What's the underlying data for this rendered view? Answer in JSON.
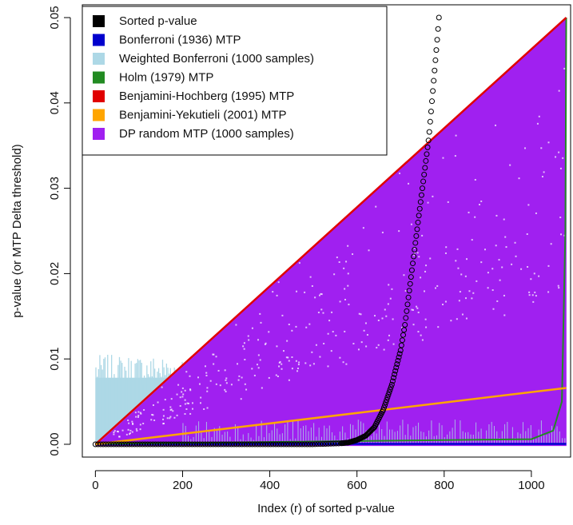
{
  "chart_data": {
    "type": "scatter",
    "xlabel": "Index (r) of sorted p-value",
    "ylabel": "p-value   (or MTP Delta threshold)",
    "xlim": [
      -30,
      1090
    ],
    "ylim": [
      -0.0015,
      0.0515
    ],
    "x_ticks": [
      0,
      200,
      400,
      600,
      800,
      1000
    ],
    "x_tick_labels": [
      "0",
      "200",
      "400",
      "600",
      "800",
      "1000"
    ],
    "y_ticks": [
      0.0,
      0.01,
      0.02,
      0.03,
      0.04,
      0.05
    ],
    "y_tick_labels": [
      "0.00",
      "0.01",
      "0.02",
      "0.03",
      "0.04",
      "0.05"
    ],
    "n_tests": 1080,
    "alpha": 0.05,
    "grid": false,
    "legend_position": "top-left",
    "legend": [
      {
        "label": "Sorted p-value",
        "color": "#000000"
      },
      {
        "label": "Bonferroni (1936) MTP",
        "color": "#0000cd"
      },
      {
        "label": "Weighted Bonferroni (1000 samples)",
        "color": "#add8e6"
      },
      {
        "label": "Holm (1979) MTP",
        "color": "#228b22"
      },
      {
        "label": "Benjamini-Hochberg (1995) MTP",
        "color": "#e00000"
      },
      {
        "label": "Benjamini-Yekutieli (2001) MTP",
        "color": "#ffa500"
      },
      {
        "label": "DP random MTP (1000 samples)",
        "color": "#a020f0"
      }
    ],
    "series": [
      {
        "name": "Sorted p-value",
        "kind": "points",
        "color": "#000000",
        "points": [
          [
            0,
            0.0
          ],
          [
            100,
            0.0
          ],
          [
            200,
            0.0
          ],
          [
            300,
            0.0
          ],
          [
            400,
            0.0
          ],
          [
            500,
            0.0
          ],
          [
            560,
            0.0001
          ],
          [
            580,
            0.0002
          ],
          [
            600,
            0.0005
          ],
          [
            620,
            0.001
          ],
          [
            640,
            0.002
          ],
          [
            660,
            0.004
          ],
          [
            680,
            0.007
          ],
          [
            700,
            0.011
          ],
          [
            710,
            0.014
          ],
          [
            720,
            0.018
          ],
          [
            730,
            0.022
          ],
          [
            740,
            0.026
          ],
          [
            750,
            0.03
          ],
          [
            760,
            0.034
          ],
          [
            765,
            0.036
          ],
          [
            770,
            0.039
          ],
          [
            775,
            0.042
          ],
          [
            780,
            0.045
          ],
          [
            785,
            0.048
          ],
          [
            788,
            0.05
          ]
        ]
      },
      {
        "name": "Bonferroni (1936) MTP",
        "kind": "line",
        "color": "#0000cd",
        "x": [
          0,
          1080
        ],
        "y": [
          4.63e-05,
          4.63e-05
        ]
      },
      {
        "name": "Holm (1979) MTP",
        "kind": "line",
        "color": "#228b22",
        "x": [
          0,
          1000,
          1050,
          1070,
          1078,
          1080
        ],
        "y": [
          4.63e-05,
          0.0006,
          0.0016,
          0.005,
          0.025,
          0.05
        ]
      },
      {
        "name": "Benjamini-Hochberg (1995) MTP",
        "kind": "line",
        "color": "#e00000",
        "x": [
          0,
          1080
        ],
        "y": [
          0.0,
          0.05
        ]
      },
      {
        "name": "Benjamini-Yekutieli (2001) MTP",
        "kind": "line",
        "color": "#ffa500",
        "x": [
          0,
          1080
        ],
        "y": [
          0.0,
          0.0066
        ]
      },
      {
        "name": "Weighted Bonferroni (1000 samples)",
        "kind": "band",
        "color": "#add8e6",
        "x_range": [
          0,
          200
        ],
        "y_max": 0.0105
      },
      {
        "name": "DP random MTP (1000 samples)",
        "kind": "band",
        "color": "#a020f0",
        "x_range": [
          0,
          1080
        ],
        "upper_bound": "Benjamini-Hochberg"
      }
    ]
  }
}
